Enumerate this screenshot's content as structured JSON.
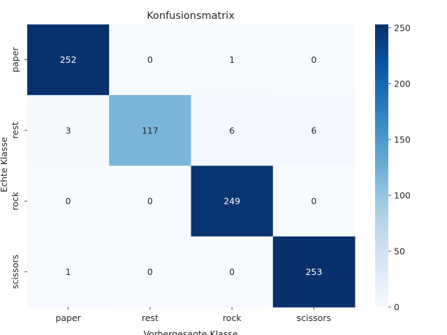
{
  "chart_data": {
    "type": "heatmap",
    "title": "Konfusionsmatrix",
    "xlabel": "Vorhergesagte Klasse",
    "ylabel": "Echte Klasse",
    "x_categories": [
      "paper",
      "rest",
      "rock",
      "scissors"
    ],
    "y_categories": [
      "paper",
      "rest",
      "rock",
      "scissors"
    ],
    "values": [
      [
        252,
        0,
        1,
        0
      ],
      [
        3,
        117,
        6,
        6
      ],
      [
        0,
        0,
        249,
        0
      ],
      [
        1,
        0,
        0,
        253
      ]
    ],
    "colormap": "Blues",
    "colorbar": {
      "min": 0,
      "max": 253,
      "ticks": [
        0,
        50,
        100,
        150,
        200,
        250
      ]
    }
  }
}
